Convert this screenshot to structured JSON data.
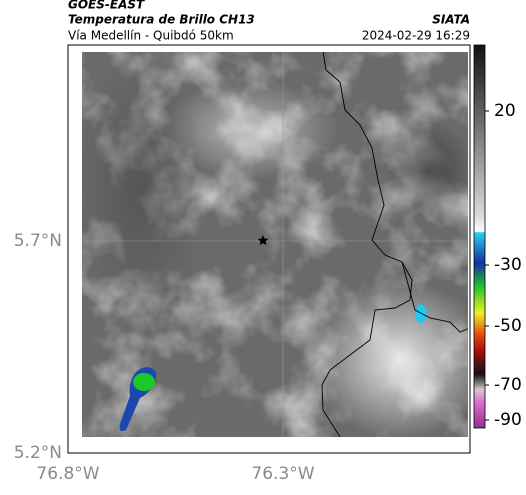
{
  "header": {
    "title": "GOES-EAST",
    "subtitle": "Temperatura de Brillo CH13",
    "route": "Vía Medellín - Quibdó 50km",
    "source": "SIATA",
    "datetime": "2024-02-29 16:29"
  },
  "axes": {
    "lat_labels": [
      "5.7°N",
      "5.2°N"
    ],
    "lon_labels": [
      "76.8°W",
      "76.3°W"
    ]
  },
  "colorbar": {
    "labels": [
      "20",
      "-30",
      "-50",
      "-70",
      "-90"
    ]
  }
}
